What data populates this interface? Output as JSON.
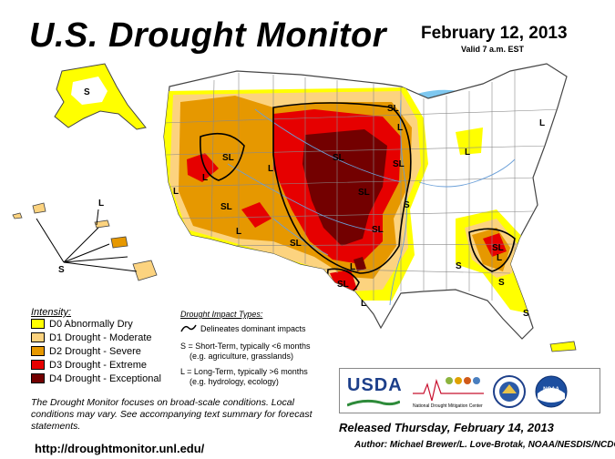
{
  "header": {
    "title": "U.S. Drought Monitor",
    "date": "February 12, 2013",
    "valid": "Valid 7 a.m. EST"
  },
  "legend": {
    "title": "Intensity:",
    "items": [
      {
        "label": "D0 Abnormally Dry",
        "color": "#FFFF00"
      },
      {
        "label": "D1 Drought - Moderate",
        "color": "#FCD37F"
      },
      {
        "label": "D2 Drought - Severe",
        "color": "#E69800"
      },
      {
        "label": "D3 Drought - Extreme",
        "color": "#E60000"
      },
      {
        "label": "D4 Drought - Exceptional",
        "color": "#730000"
      }
    ]
  },
  "impact_types": {
    "title": "Drought Impact Types:",
    "line_label": "Delineates dominant impacts",
    "short_term": "S = Short-Term, typically <6 months",
    "short_term_eg": "(e.g. agriculture, grasslands)",
    "long_term": "L = Long-Term, typically >6 months",
    "long_term_eg": "(e.g. hydrology, ecology)"
  },
  "map_labels": {
    "sl": "SL",
    "s": "S",
    "l": "L"
  },
  "logos": {
    "usda": "USDA",
    "ndmc_line1": "National",
    "ndmc_line2": "Drought Mitigation Center",
    "noaa": "NOAA"
  },
  "footer": {
    "note": "The Drought Monitor focuses on broad-scale conditions. Local conditions may vary. See accompanying text summary for forecast statements.",
    "url": "http://droughtmonitor.unl.edu/",
    "released": "Released Thursday, February 14, 2013",
    "author": "Author: Michael Brewer/L. Love-Brotak, NOAA/NESDIS/NCDC"
  },
  "colors": {
    "d0": "#FFFF00",
    "d1": "#FCD37F",
    "d2": "#E69800",
    "d3": "#E60000",
    "d4": "#730000",
    "water": "#7EC8F0",
    "river": "#6A9FD8",
    "boundary": "#8A8A8A"
  }
}
